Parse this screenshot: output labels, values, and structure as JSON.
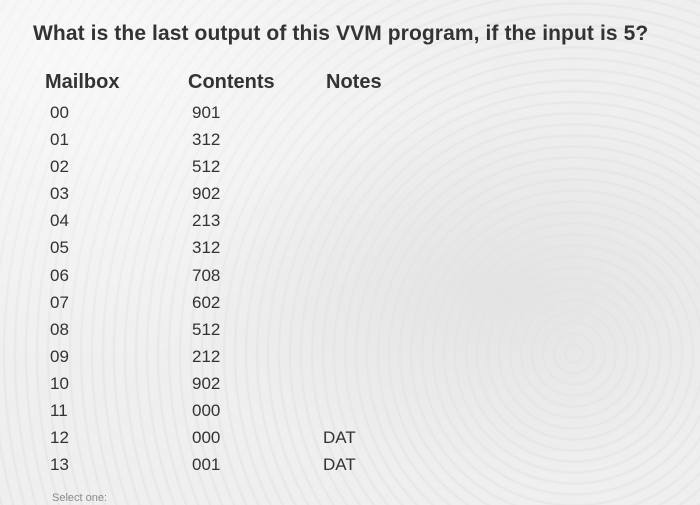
{
  "question": "What is the last output of this VVM program, if the input is 5?",
  "table": {
    "headers": {
      "mailbox": "Mailbox",
      "contents": "Contents",
      "notes": "Notes"
    },
    "rows": [
      {
        "mailbox": "00",
        "contents": "901",
        "notes": ""
      },
      {
        "mailbox": "01",
        "contents": "312",
        "notes": ""
      },
      {
        "mailbox": "02",
        "contents": "512",
        "notes": ""
      },
      {
        "mailbox": "03",
        "contents": "902",
        "notes": ""
      },
      {
        "mailbox": "04",
        "contents": "213",
        "notes": ""
      },
      {
        "mailbox": "05",
        "contents": "312",
        "notes": ""
      },
      {
        "mailbox": "06",
        "contents": "708",
        "notes": ""
      },
      {
        "mailbox": "07",
        "contents": "602",
        "notes": ""
      },
      {
        "mailbox": "08",
        "contents": "512",
        "notes": ""
      },
      {
        "mailbox": "09",
        "contents": "212",
        "notes": ""
      },
      {
        "mailbox": "10",
        "contents": "902",
        "notes": ""
      },
      {
        "mailbox": "11",
        "contents": "000",
        "notes": ""
      },
      {
        "mailbox": "12",
        "contents": "000",
        "notes": "DAT"
      },
      {
        "mailbox": "13",
        "contents": "001",
        "notes": "DAT"
      }
    ]
  },
  "footer": {
    "select_hint": "Select one:"
  }
}
